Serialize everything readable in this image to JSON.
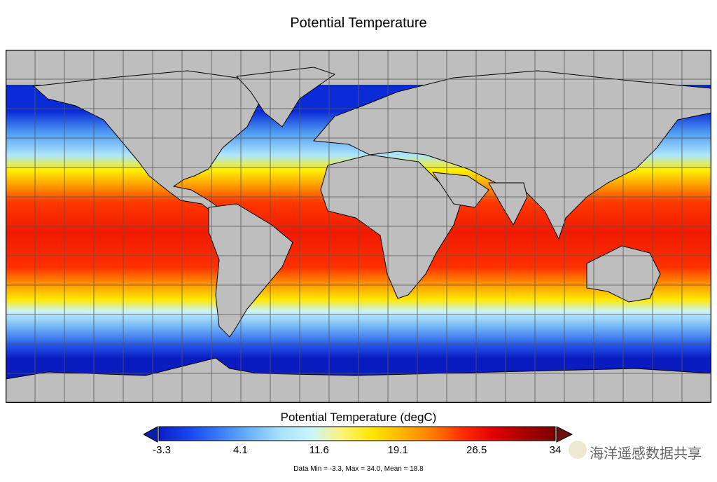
{
  "title": "Potential Temperature",
  "colorbar": {
    "title": "Potential Temperature (degC)",
    "ticks": [
      "-3.3",
      "4.1",
      "11.6",
      "19.1",
      "26.5",
      "34"
    ],
    "min": -3.3,
    "max": 34.0,
    "colors": [
      "#0a1fc8",
      "#1846ee",
      "#3c7cf4",
      "#6cb4f8",
      "#a8e2fb",
      "#c8f6fb",
      "#fff27a",
      "#ffe600",
      "#ffb300",
      "#ff7a00",
      "#ff2a00",
      "#e00000",
      "#a80000",
      "#7a0000"
    ]
  },
  "stats": "Data Min = -3.3, Max = 34.0, Mean = 18.8",
  "watermark": "海洋遥感数据共享",
  "colors": {
    "land": "#bebebe",
    "grid": "#555555"
  }
}
